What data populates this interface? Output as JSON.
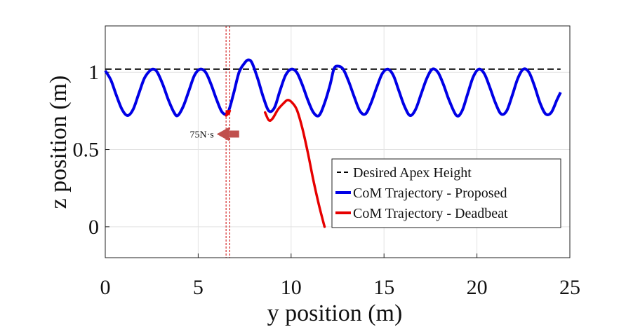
{
  "chart_data": {
    "type": "line",
    "xlabel": "y position  (m)",
    "ylabel": "z position (m)",
    "xlim": [
      0,
      25
    ],
    "ylim": [
      -0.2,
      1.3
    ],
    "xticks": [
      0,
      5,
      10,
      15,
      20,
      25
    ],
    "yticks": [
      0,
      0.5,
      1
    ],
    "ytick_labels": [
      "0",
      "0.5",
      "1"
    ],
    "grid": true,
    "legend_position": "bottom-right",
    "colors": {
      "desired": "#000000",
      "proposed": "#0000e6",
      "deadbeat": "#e60000",
      "arrow": "#c0504d",
      "push_lines": "#cc0000"
    },
    "series": [
      {
        "name": "Desired Apex Height",
        "style": "dashed",
        "x": [
          0,
          24.5
        ],
        "y": [
          1.02,
          1.02
        ]
      },
      {
        "name": "CoM Trajectory - Proposed",
        "style": "solid",
        "x": [
          0,
          0.3,
          0.6,
          0.9,
          1.2,
          1.5,
          1.8,
          2.1,
          2.4,
          2.6,
          2.8,
          3.1,
          3.4,
          3.7,
          3.9,
          4.2,
          4.5,
          4.8,
          5.1,
          5.4,
          5.7,
          6.0,
          6.3,
          6.6,
          6.9,
          7.2,
          7.5,
          7.7,
          7.9,
          8.2,
          8.5,
          8.8,
          9.1,
          9.4,
          9.7,
          10.0,
          10.3,
          10.6,
          10.9,
          11.2,
          11.5,
          11.8,
          12.1,
          12.3,
          12.5,
          12.8,
          13.1,
          13.4,
          13.7,
          14.0,
          14.3,
          14.6,
          14.9,
          15.2,
          15.5,
          15.8,
          16.1,
          16.4,
          16.7,
          17.0,
          17.3,
          17.6,
          17.9,
          18.2,
          18.5,
          18.9,
          19.2,
          19.5,
          19.8,
          20.1,
          20.4,
          20.7,
          21.0,
          21.3,
          21.6,
          21.9,
          22.2,
          22.5,
          22.8,
          23.1,
          23.4,
          23.7,
          24.0,
          24.3,
          24.5
        ],
        "y": [
          1.01,
          0.95,
          0.85,
          0.76,
          0.72,
          0.76,
          0.86,
          0.96,
          1.01,
          1.02,
          1.0,
          0.92,
          0.82,
          0.74,
          0.72,
          0.78,
          0.88,
          0.98,
          1.02,
          1.0,
          0.92,
          0.82,
          0.74,
          0.74,
          0.86,
          1.0,
          1.06,
          1.08,
          1.06,
          0.96,
          0.84,
          0.75,
          0.77,
          0.88,
          0.98,
          1.02,
          1.0,
          0.92,
          0.82,
          0.74,
          0.72,
          0.8,
          0.92,
          1.02,
          1.04,
          1.02,
          0.94,
          0.84,
          0.75,
          0.73,
          0.8,
          0.9,
          0.99,
          1.02,
          0.98,
          0.88,
          0.78,
          0.72,
          0.76,
          0.86,
          0.96,
          1.02,
          1.0,
          0.92,
          0.82,
          0.72,
          0.75,
          0.86,
          0.97,
          1.02,
          0.99,
          0.9,
          0.8,
          0.73,
          0.75,
          0.85,
          0.96,
          1.02,
          1.0,
          0.91,
          0.8,
          0.73,
          0.74,
          0.82,
          0.87
        ]
      },
      {
        "name": "CoM Trajectory - Deadbeat",
        "style": "solid",
        "x": [
          6.5,
          6.6,
          6.7,
          8.6,
          8.8,
          9.0,
          9.3,
          9.6,
          9.8,
          10.0,
          10.3,
          10.6,
          10.9,
          11.2,
          11.5,
          11.8
        ],
        "y": [
          0.72,
          0.73,
          0.75,
          0.74,
          0.69,
          0.7,
          0.76,
          0.8,
          0.82,
          0.81,
          0.76,
          0.64,
          0.48,
          0.3,
          0.14,
          0.0
        ]
      }
    ],
    "annotations": [
      {
        "text": "75N·s",
        "type": "arrow-left",
        "x": 6.6,
        "y": 0.6
      }
    ],
    "push_interval_x": [
      6.5,
      6.7
    ]
  }
}
